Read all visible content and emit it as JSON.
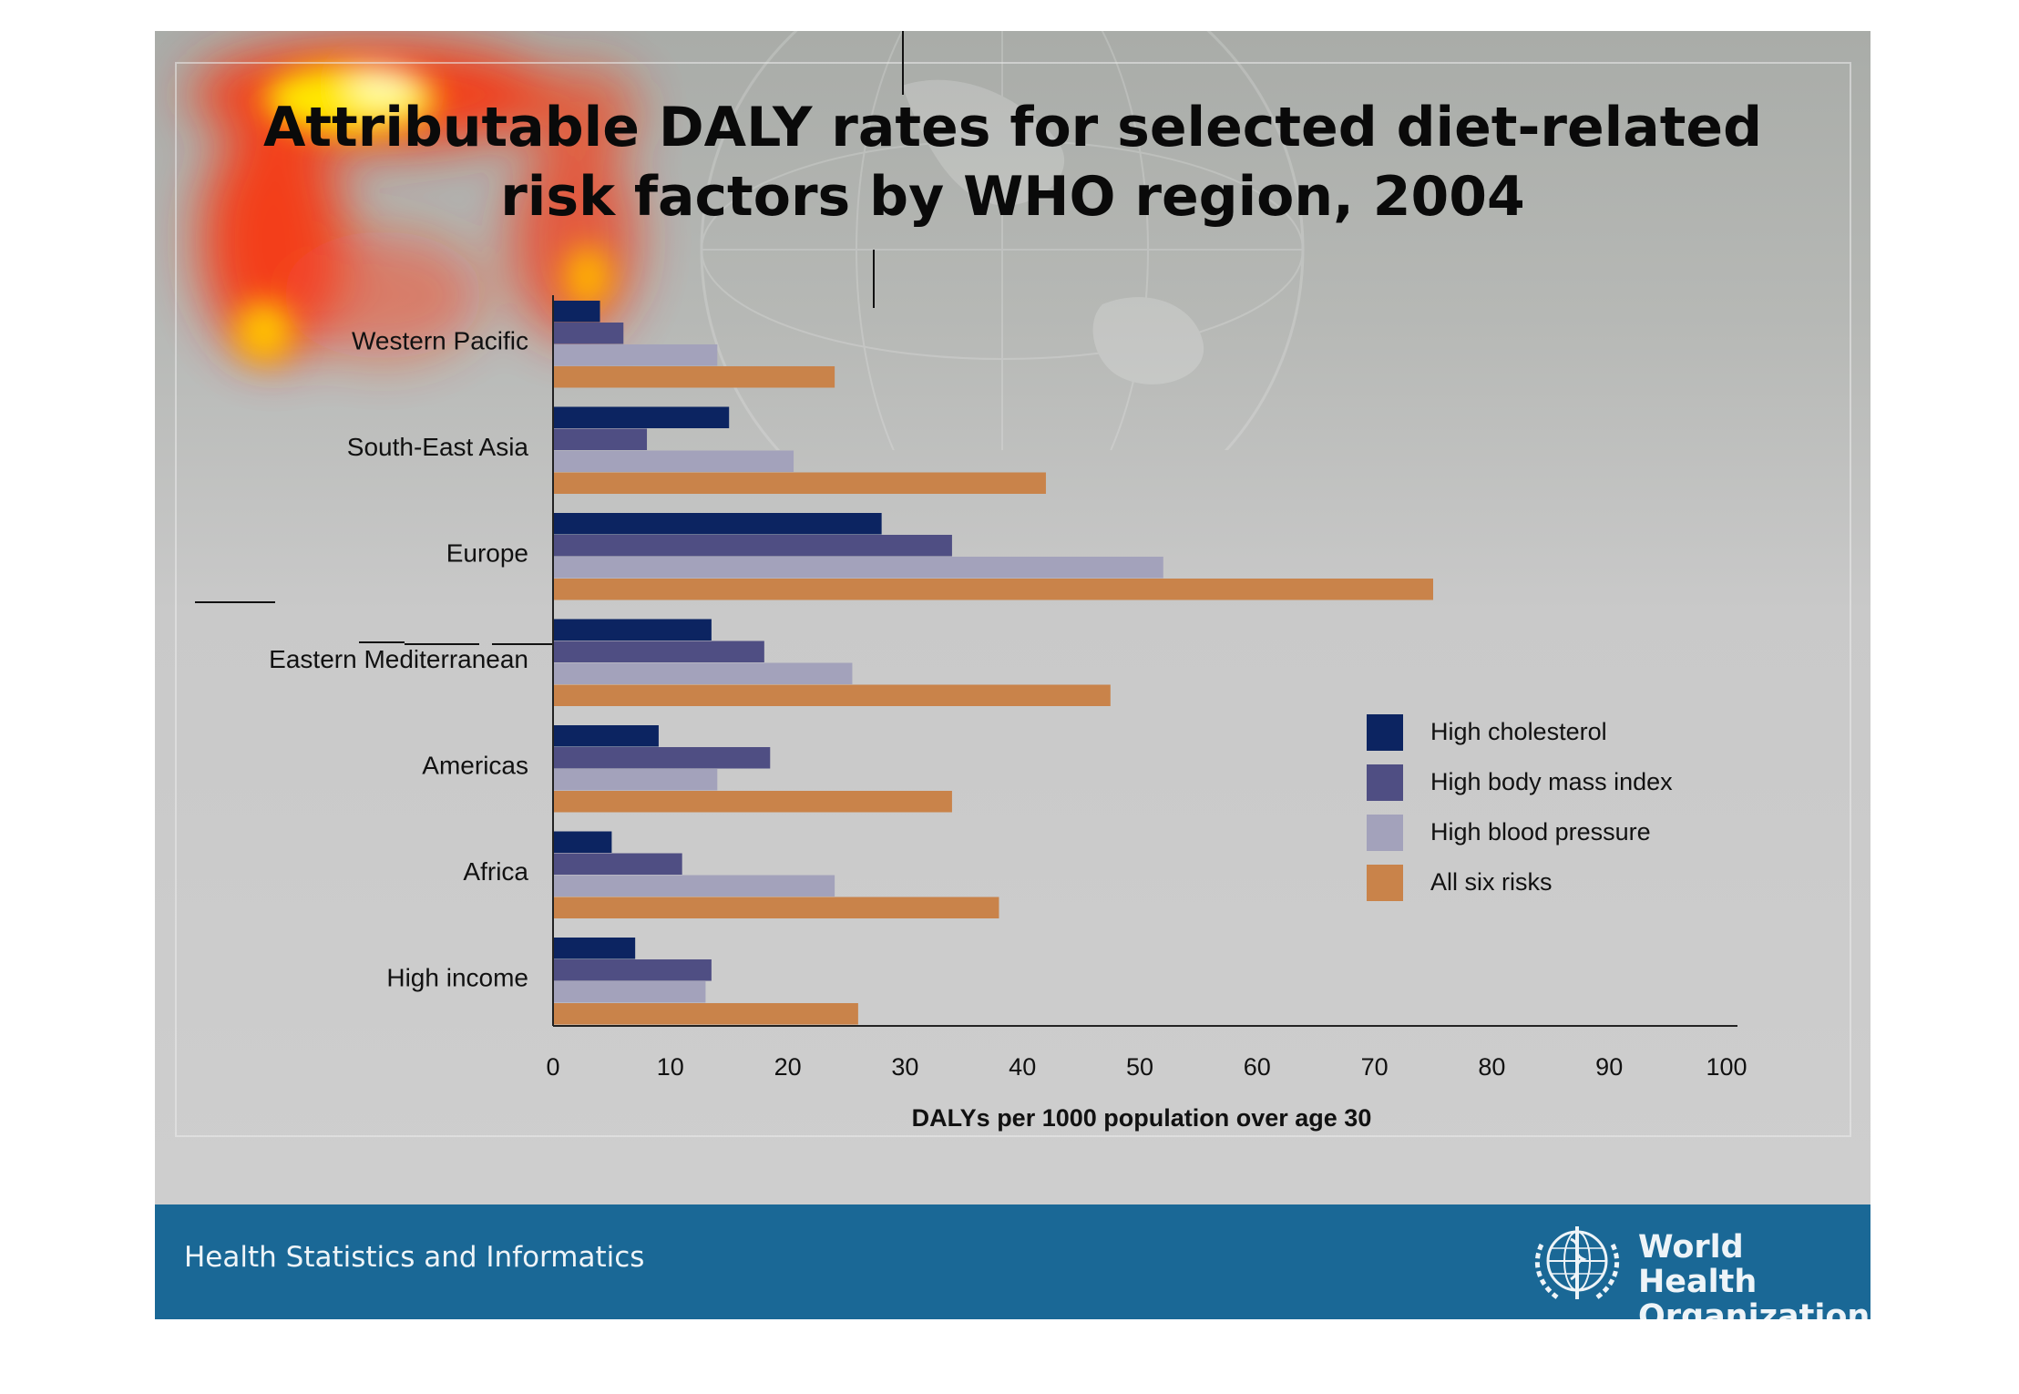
{
  "title": {
    "line1": "Attributable DALY rates for selected diet-related",
    "line2": "risk factors by WHO region, 2004"
  },
  "footer": {
    "left_text": "Health Statistics and Informatics",
    "org_name_line1": "World Health",
    "org_name_line2": "Organization",
    "background_color": "#1a6896"
  },
  "chart_data": {
    "type": "bar",
    "orientation": "horizontal",
    "categories": [
      "Western Pacific",
      "South-East Asia",
      "Europe",
      "Eastern Mediterranean",
      "Americas",
      "Africa",
      "High income"
    ],
    "series": [
      {
        "name": "High cholesterol",
        "color": "#0c2461",
        "values": [
          4,
          15,
          28,
          13.5,
          9,
          5,
          7
        ]
      },
      {
        "name": "High body mass index",
        "color": "#4f4e83",
        "values": [
          6,
          8,
          34,
          18,
          18.5,
          11,
          13.5
        ]
      },
      {
        "name": "High blood pressure",
        "color": "#a3a2bb",
        "values": [
          14,
          20.5,
          52,
          25.5,
          14,
          24,
          13
        ]
      },
      {
        "name": "All six risks",
        "color": "#c9834a",
        "values": [
          24,
          42,
          75,
          47.5,
          34,
          38,
          26
        ]
      }
    ],
    "xlabel": "DALYs per 1000 population over age 30",
    "ylabel": "",
    "xlim": [
      0,
      100
    ],
    "xticks": [
      "0",
      "10",
      "20",
      "30",
      "40",
      "50",
      "60",
      "70",
      "80",
      "90",
      "100"
    ],
    "grid": false,
    "legend_position": "right"
  }
}
